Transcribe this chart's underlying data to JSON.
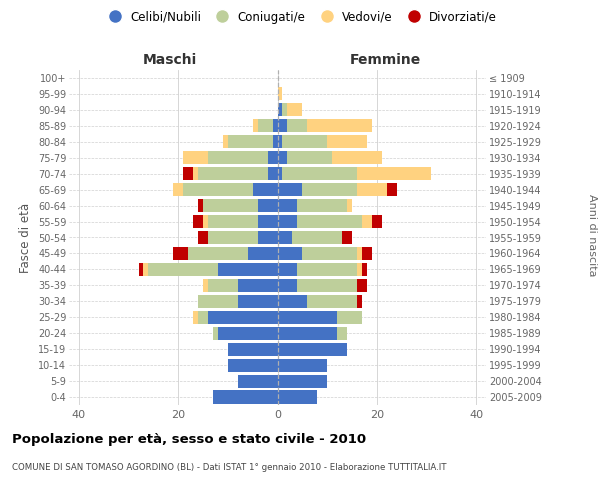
{
  "age_groups": [
    "0-4",
    "5-9",
    "10-14",
    "15-19",
    "20-24",
    "25-29",
    "30-34",
    "35-39",
    "40-44",
    "45-49",
    "50-54",
    "55-59",
    "60-64",
    "65-69",
    "70-74",
    "75-79",
    "80-84",
    "85-89",
    "90-94",
    "95-99",
    "100+"
  ],
  "birth_years": [
    "2005-2009",
    "2000-2004",
    "1995-1999",
    "1990-1994",
    "1985-1989",
    "1980-1984",
    "1975-1979",
    "1970-1974",
    "1965-1969",
    "1960-1964",
    "1955-1959",
    "1950-1954",
    "1945-1949",
    "1940-1944",
    "1935-1939",
    "1930-1934",
    "1925-1929",
    "1920-1924",
    "1915-1919",
    "1910-1914",
    "≤ 1909"
  ],
  "maschi": {
    "celibi": [
      13,
      8,
      10,
      10,
      12,
      14,
      8,
      8,
      12,
      6,
      4,
      4,
      4,
      5,
      2,
      2,
      1,
      1,
      0,
      0,
      0
    ],
    "coniugati": [
      0,
      0,
      0,
      0,
      1,
      2,
      8,
      6,
      14,
      12,
      10,
      10,
      11,
      14,
      14,
      12,
      9,
      3,
      0,
      0,
      0
    ],
    "vedovi": [
      0,
      0,
      0,
      0,
      0,
      1,
      0,
      1,
      1,
      0,
      0,
      1,
      0,
      2,
      1,
      5,
      1,
      1,
      0,
      0,
      0
    ],
    "divorziati": [
      0,
      0,
      0,
      0,
      0,
      0,
      0,
      0,
      1,
      3,
      2,
      2,
      1,
      0,
      2,
      0,
      0,
      0,
      0,
      0,
      0
    ]
  },
  "femmine": {
    "nubili": [
      8,
      10,
      10,
      14,
      12,
      12,
      6,
      4,
      4,
      5,
      3,
      4,
      4,
      5,
      1,
      2,
      1,
      2,
      1,
      0,
      0
    ],
    "coniugate": [
      0,
      0,
      0,
      0,
      2,
      5,
      10,
      12,
      12,
      11,
      10,
      13,
      10,
      11,
      15,
      9,
      9,
      4,
      1,
      0,
      0
    ],
    "vedove": [
      0,
      0,
      0,
      0,
      0,
      0,
      0,
      0,
      1,
      1,
      0,
      2,
      1,
      6,
      15,
      10,
      8,
      13,
      3,
      1,
      0
    ],
    "divorziate": [
      0,
      0,
      0,
      0,
      0,
      0,
      1,
      2,
      1,
      2,
      2,
      2,
      0,
      2,
      0,
      0,
      0,
      0,
      0,
      0,
      0
    ]
  },
  "colors": {
    "celibi_nubili": "#4472C4",
    "coniugati": "#BECF9B",
    "vedovi": "#FFD280",
    "divorziati": "#C00000"
  },
  "xlim": [
    -42,
    42
  ],
  "xticks": [
    -40,
    -20,
    0,
    20,
    40
  ],
  "xticklabels": [
    "40",
    "20",
    "0",
    "20",
    "40"
  ],
  "title": "Popolazione per età, sesso e stato civile - 2010",
  "subtitle": "COMUNE DI SAN TOMASO AGORDINO (BL) - Dati ISTAT 1° gennaio 2010 - Elaborazione TUTTITALIA.IT",
  "ylabel_left": "Fasce di età",
  "ylabel_right": "Anni di nascita",
  "label_maschi": "Maschi",
  "label_femmine": "Femmine",
  "legend_labels": [
    "Celibi/Nubili",
    "Coniugati/e",
    "Vedovi/e",
    "Divorziati/e"
  ],
  "background_color": "#ffffff",
  "grid_color": "#d0d0d0",
  "bar_height": 0.82
}
